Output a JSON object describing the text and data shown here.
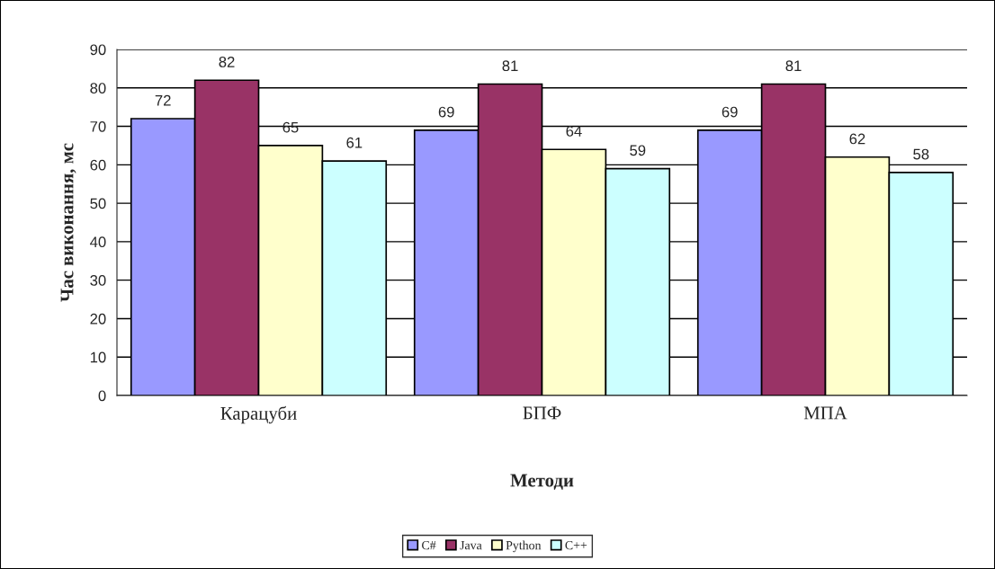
{
  "chart_data": {
    "type": "bar",
    "xlabel": "Методи",
    "ylabel": "Час виконання, мс",
    "categories": [
      "Карацуби",
      "БПФ",
      "МПА"
    ],
    "series": [
      {
        "name": "C#",
        "color": "#9999ff",
        "values": [
          72,
          69,
          69
        ]
      },
      {
        "name": "Java",
        "color": "#993366",
        "values": [
          82,
          81,
          81
        ]
      },
      {
        "name": "Python",
        "color": "#ffffcc",
        "values": [
          65,
          64,
          62
        ]
      },
      {
        "name": "C++",
        "color": "#ccffff",
        "values": [
          61,
          59,
          58
        ]
      }
    ],
    "ylim": [
      0,
      90
    ],
    "yticks": [
      0,
      10,
      20,
      30,
      40,
      50,
      60,
      70,
      80,
      90
    ],
    "grid": "y",
    "legend": "bottom",
    "data_labels": true
  }
}
